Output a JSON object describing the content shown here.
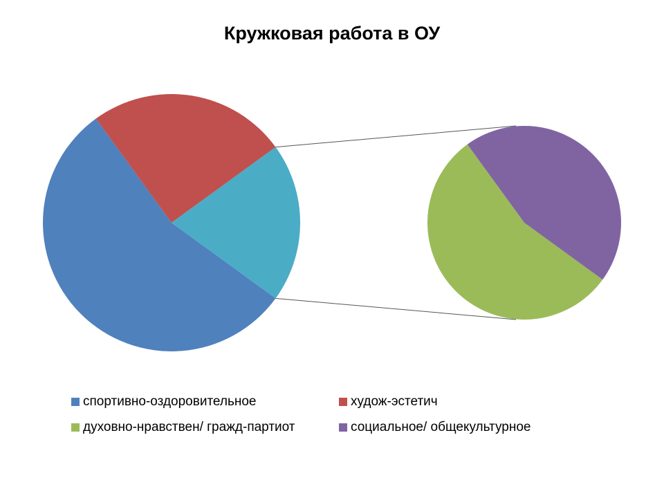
{
  "chart_data": {
    "type": "pie-of-pie",
    "title": "Кружковая работа в ОУ",
    "series": [
      {
        "name": "спортивно-оздоровительное",
        "color": "#4f81bd",
        "values": [
          55
        ]
      },
      {
        "name": "худож-эстетич",
        "color": "#c0504d",
        "values": [
          25
        ]
      },
      {
        "name": "духовно-нравствен/ гражд-партиот",
        "color": "#9bbb59",
        "values": [
          11
        ]
      },
      {
        "name": "социальное/ общекультурное",
        "color": "#8064a2",
        "values": [
          9
        ]
      }
    ],
    "secondary_count": 2,
    "other_color": "#4bacc6",
    "legend": "bottom"
  }
}
